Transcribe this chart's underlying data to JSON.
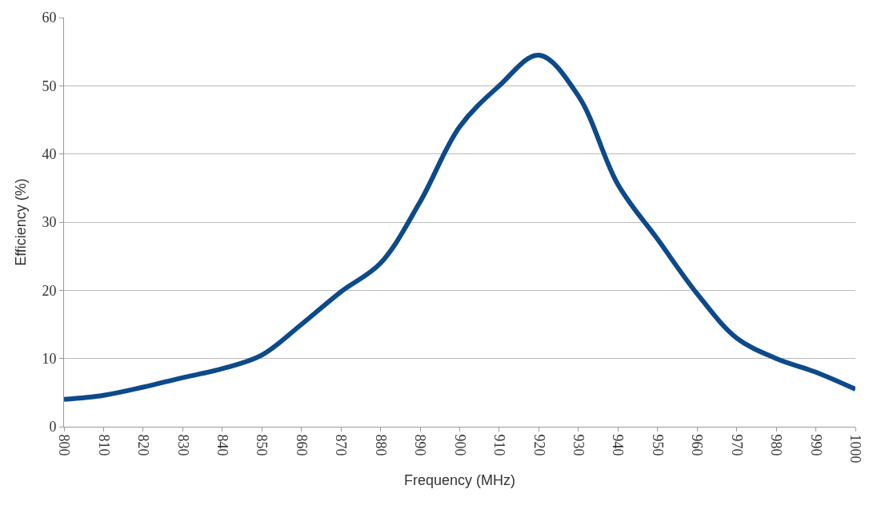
{
  "chart_data": {
    "type": "line",
    "xlabel": "Frequency (MHz)",
    "ylabel": "Efficiency (%)",
    "x": [
      800,
      810,
      820,
      830,
      840,
      850,
      860,
      870,
      880,
      890,
      900,
      910,
      920,
      930,
      940,
      950,
      960,
      970,
      980,
      990,
      1000
    ],
    "series": [
      {
        "color": "#0d4a8a",
        "values": [
          4.0,
          4.6,
          5.8,
          7.2,
          8.5,
          10.5,
          15,
          19.8,
          24,
          33,
          44,
          50,
          54.5,
          48.5,
          35.5,
          27.5,
          19.5,
          13,
          10,
          8,
          5.5
        ]
      }
    ],
    "xlim": [
      800,
      1000
    ],
    "xticks": [
      800,
      810,
      820,
      830,
      840,
      850,
      860,
      870,
      880,
      890,
      900,
      910,
      920,
      930,
      940,
      950,
      960,
      970,
      980,
      990,
      1000
    ],
    "ylim": [
      0,
      60
    ],
    "yticks": [
      0,
      10,
      20,
      30,
      40,
      50,
      60
    ],
    "grid": "y",
    "marker": "none",
    "line_style": "solid"
  }
}
